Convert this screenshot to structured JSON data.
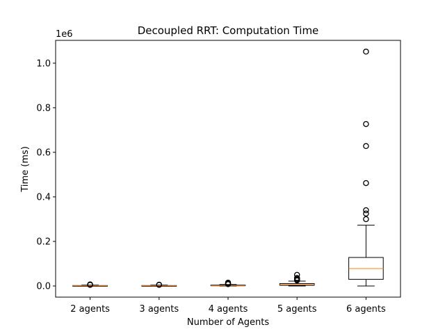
{
  "chart_data": {
    "type": "box",
    "title": "Decoupled RRT: Computation Time",
    "xlabel": "Number of Agents",
    "ylabel": "Time (ms)",
    "y_offset_text": "1e6",
    "ylim": [
      -50000,
      1102500
    ],
    "yticks": [
      0,
      200000,
      400000,
      600000,
      800000,
      1000000
    ],
    "ytick_labels": [
      "0.0",
      "0.2",
      "0.4",
      "0.6",
      "0.8",
      "1.0"
    ],
    "categories": [
      "2 agents",
      "3 agents",
      "4 agents",
      "5 agents",
      "6 agents"
    ],
    "boxes": [
      {
        "whislo": 0,
        "q1": 500,
        "med": 1000,
        "q3": 2000,
        "whishi": 4000,
        "fliers": [
          5000,
          6000,
          7000
        ]
      },
      {
        "whislo": 0,
        "q1": 500,
        "med": 1000,
        "q3": 2000,
        "whishi": 4000,
        "fliers": [
          5000,
          6000
        ]
      },
      {
        "whislo": 0,
        "q1": 1000,
        "med": 2000,
        "q3": 4000,
        "whishi": 6500,
        "fliers": [
          8000,
          10000,
          12000,
          15000
        ]
      },
      {
        "whislo": 0,
        "q1": 3000,
        "med": 6000,
        "q3": 11000,
        "whishi": 22000,
        "fliers": [
          25000,
          28000,
          32000,
          36000,
          50000
        ]
      },
      {
        "whislo": 0,
        "q1": 30000,
        "med": 78000,
        "q3": 128000,
        "whishi": 273000,
        "fliers": [
          300000,
          325000,
          340000,
          462000,
          628000,
          727000,
          1052000
        ]
      }
    ],
    "colors": {
      "box": "#000000",
      "median": "#ff7f0e",
      "background": "#ffffff"
    }
  }
}
